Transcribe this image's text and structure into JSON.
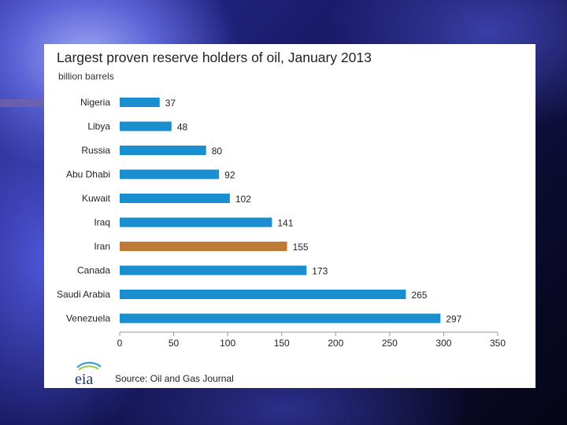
{
  "colors": {
    "bar": "#1a8fd0",
    "highlight": "#c07a38",
    "axis": "#999999"
  },
  "chart_data": {
    "type": "bar",
    "orientation": "horizontal",
    "title": "Largest proven reserve holders of oil, January 2013",
    "subtitle": "billion barrels",
    "categories": [
      "Nigeria",
      "Libya",
      "Russia",
      "Abu Dhabi",
      "Kuwait",
      "Iraq",
      "Iran",
      "Canada",
      "Saudi Arabia",
      "Venezuela"
    ],
    "values": [
      37,
      48,
      80,
      92,
      102,
      141,
      155,
      173,
      265,
      297
    ],
    "highlight_category": "Iran",
    "xlim": [
      0,
      350
    ],
    "xticks": [
      0,
      50,
      100,
      150,
      200,
      250,
      300,
      350
    ],
    "grid": false,
    "legend": "none"
  },
  "footer": {
    "logo_text": "eia",
    "source": "Source: Oil and Gas Journal"
  }
}
